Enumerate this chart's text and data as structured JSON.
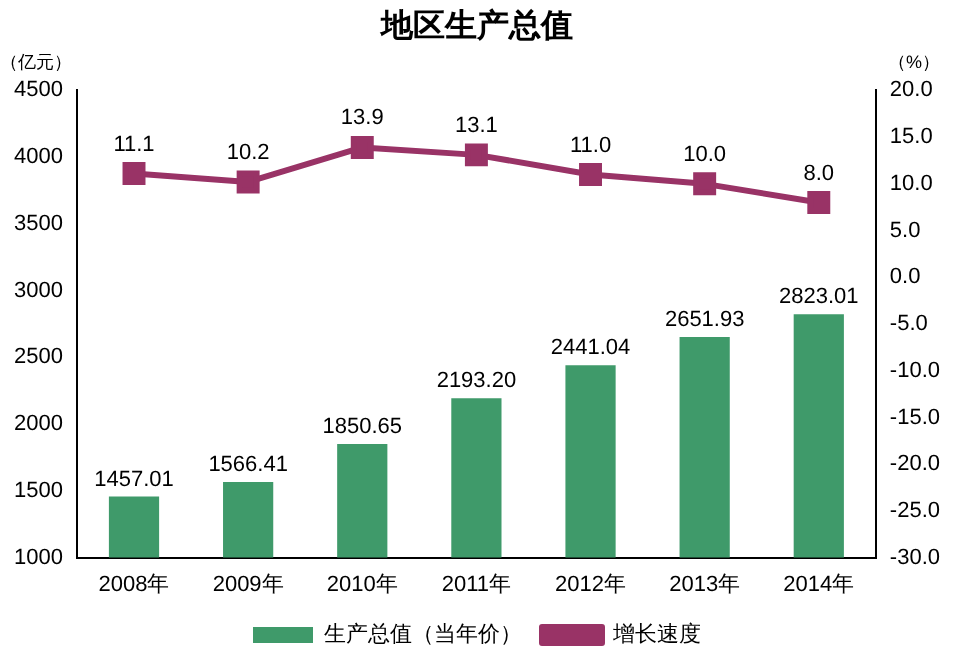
{
  "chart_data": {
    "type": "bar",
    "title": "地区生产总值",
    "ylabel": "（亿元）",
    "y2label": "（%）",
    "categories": [
      "2008年",
      "2009年",
      "2010年",
      "2011年",
      "2012年",
      "2013年",
      "2014年"
    ],
    "series": [
      {
        "name": "生产总值（当年价）",
        "color": "#3f9a6a",
        "values": [
          1457.01,
          1566.41,
          1850.65,
          2193.2,
          2441.04,
          2651.93,
          2823.01
        ],
        "value_labels": [
          "1457.01",
          "1566.41",
          "1850.65",
          "2193.20",
          "2441.04",
          "2651.93",
          "2823.01"
        ]
      },
      {
        "name": "增长速度",
        "type": "line",
        "axis": "y2",
        "color": "#993366",
        "values": [
          11.1,
          10.2,
          13.9,
          13.1,
          11.0,
          10.0,
          8.0
        ],
        "value_labels": [
          "11.1",
          "10.2",
          "13.9",
          "13.1",
          "11.0",
          "10.0",
          "8.0"
        ]
      }
    ],
    "ylim": [
      1000,
      4500
    ],
    "yticks": [
      1000,
      1500,
      2000,
      2500,
      3000,
      3500,
      4000,
      4500
    ],
    "y2lim": [
      -30,
      20
    ],
    "y2ticks": [
      {
        "value": -30,
        "label": "-30.0"
      },
      {
        "value": -25,
        "label": "-25.0"
      },
      {
        "value": -20,
        "label": "-20.0"
      },
      {
        "value": -15,
        "label": "-15.0"
      },
      {
        "value": -10,
        "label": "-10.0"
      },
      {
        "value": -5,
        "label": "-5.0"
      },
      {
        "value": 0,
        "label": "0.0"
      },
      {
        "value": 5,
        "label": "5.0"
      },
      {
        "value": 10,
        "label": "10.0"
      },
      {
        "value": 15,
        "label": "15.0"
      },
      {
        "value": 20,
        "label": "20.0"
      }
    ],
    "legend": "bottom",
    "grid": false,
    "marker": "square"
  }
}
